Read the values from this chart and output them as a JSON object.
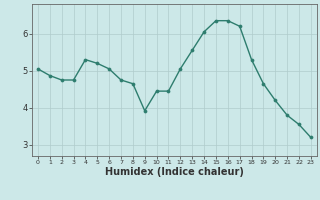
{
  "x": [
    0,
    1,
    2,
    3,
    4,
    5,
    6,
    7,
    8,
    9,
    10,
    11,
    12,
    13,
    14,
    15,
    16,
    17,
    18,
    19,
    20,
    21,
    22,
    23
  ],
  "y": [
    5.05,
    4.87,
    4.75,
    4.75,
    5.3,
    5.2,
    5.05,
    4.75,
    4.65,
    3.92,
    4.45,
    4.45,
    5.05,
    5.55,
    6.05,
    6.35,
    6.35,
    6.2,
    5.3,
    4.65,
    4.2,
    3.8,
    3.55,
    3.2
  ],
  "line_color": "#2e7d6e",
  "marker": "o",
  "markersize": 2.2,
  "linewidth": 1.0,
  "xlabel": "Humidex (Indice chaleur)",
  "xlabel_fontsize": 7,
  "bg_color": "#cce8e8",
  "grid_color": "#b0cccc",
  "axis_color": "#666666",
  "tick_color": "#333333",
  "ylim": [
    2.7,
    6.8
  ],
  "xlim": [
    -0.5,
    23.5
  ],
  "yticks": [
    3,
    4,
    5,
    6
  ],
  "xticks": [
    0,
    1,
    2,
    3,
    4,
    5,
    6,
    7,
    8,
    9,
    10,
    11,
    12,
    13,
    14,
    15,
    16,
    17,
    18,
    19,
    20,
    21,
    22,
    23
  ]
}
